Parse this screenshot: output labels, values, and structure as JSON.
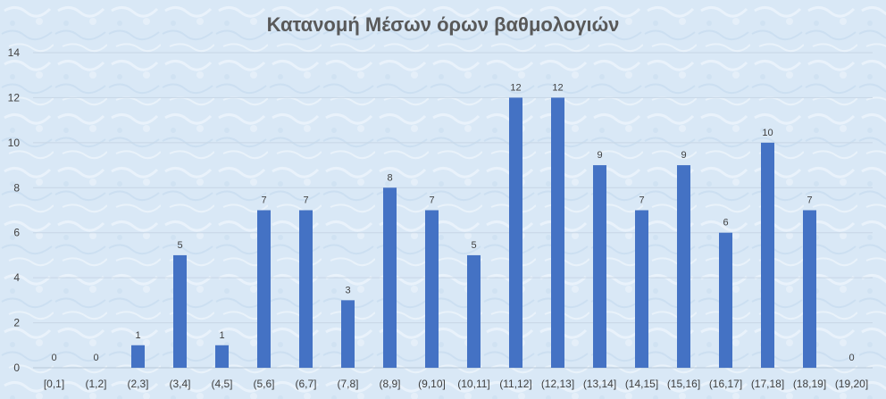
{
  "chart_data": {
    "type": "bar",
    "title": "Κατανομή Μέσων  όρων βαθμολογιών",
    "xlabel": "",
    "ylabel": "",
    "categories": [
      "[0,1]",
      "(1,2]",
      "(2,3]",
      "(3,4]",
      "(4,5]",
      "(5,6]",
      "(6,7]",
      "(7,8]",
      "(8,9]",
      "(9,10]",
      "(10,11]",
      "(11,12]",
      "(12,13]",
      "(13,14]",
      "(14,15]",
      "(15,16]",
      "(16,17]",
      "(17,18]",
      "(18,19]",
      "(19,20]"
    ],
    "values": [
      0,
      0,
      1,
      5,
      1,
      7,
      7,
      3,
      8,
      7,
      5,
      12,
      12,
      9,
      7,
      9,
      6,
      10,
      7,
      0
    ],
    "ylim": [
      0,
      14
    ],
    "yticks": [
      0,
      2,
      4,
      6,
      8,
      10,
      12,
      14
    ],
    "grid": true,
    "legend": "none",
    "colors": {
      "bar": "#4472c4",
      "text": "#404040",
      "title": "#595959",
      "grid": "#c8d6e5"
    }
  }
}
